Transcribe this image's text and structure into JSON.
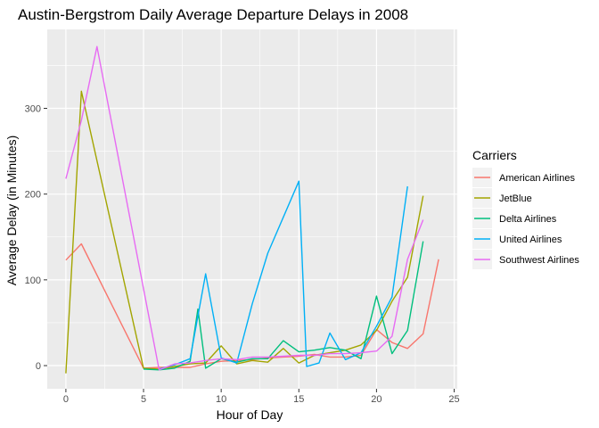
{
  "chart_data": {
    "type": "line",
    "title": "Austin-Bergstrom Daily Average Departure Delays in 2008",
    "xlabel": "Hour of Day",
    "ylabel": "Average Delay (in Minutes)",
    "xlim": [
      -1.2,
      25.2
    ],
    "ylim": [
      -27,
      392
    ],
    "x_ticks": [
      0,
      5,
      10,
      15,
      20,
      25
    ],
    "y_ticks": [
      0,
      100,
      200,
      300
    ],
    "grid": true,
    "legend": {
      "title": "Carriers",
      "position": "right"
    },
    "series": [
      {
        "name": "American Airlines",
        "color": "#F8766D",
        "points": [
          [
            0,
            123
          ],
          [
            1,
            142
          ],
          [
            5,
            -3
          ],
          [
            6,
            -2
          ],
          [
            7,
            -2
          ],
          [
            8,
            -2
          ],
          [
            9,
            2
          ],
          [
            10,
            5
          ],
          [
            11,
            6
          ],
          [
            12,
            7
          ],
          [
            13,
            9
          ],
          [
            14,
            10
          ],
          [
            15,
            11
          ],
          [
            16,
            13
          ],
          [
            17,
            10
          ],
          [
            18,
            10
          ],
          [
            19,
            12
          ],
          [
            20,
            42
          ],
          [
            21,
            27
          ],
          [
            22,
            20
          ],
          [
            23,
            37
          ],
          [
            24,
            124
          ]
        ]
      },
      {
        "name": "JetBlue",
        "color": "#A3A500",
        "points": [
          [
            0,
            -9
          ],
          [
            1,
            320
          ],
          [
            5,
            -3
          ],
          [
            6,
            -4
          ],
          [
            7,
            -1
          ],
          [
            8,
            2
          ],
          [
            9,
            3
          ],
          [
            10,
            23
          ],
          [
            11,
            2
          ],
          [
            12,
            6
          ],
          [
            13,
            4
          ],
          [
            14,
            20
          ],
          [
            15,
            3
          ],
          [
            16,
            12
          ],
          [
            17,
            15
          ],
          [
            18,
            18
          ],
          [
            19,
            24
          ],
          [
            20,
            41
          ],
          [
            21,
            75
          ],
          [
            22,
            103
          ],
          [
            23,
            198
          ]
        ]
      },
      {
        "name": "Delta Airlines",
        "color": "#00BF7D",
        "points": [
          [
            5,
            -4
          ],
          [
            6,
            -5
          ],
          [
            7,
            -3
          ],
          [
            8,
            5
          ],
          [
            8.5,
            66
          ],
          [
            9,
            -3
          ],
          [
            10,
            8
          ],
          [
            11,
            4
          ],
          [
            12,
            8
          ],
          [
            13,
            8
          ],
          [
            14,
            29
          ],
          [
            15,
            16
          ],
          [
            16,
            18
          ],
          [
            17,
            21
          ],
          [
            18,
            18
          ],
          [
            19,
            8
          ],
          [
            20,
            81
          ],
          [
            21,
            14
          ],
          [
            22,
            41
          ],
          [
            23,
            145
          ]
        ]
      },
      {
        "name": "United Airlines",
        "color": "#00B0F6",
        "points": [
          [
            6,
            -4
          ],
          [
            7,
            1
          ],
          [
            8,
            8
          ],
          [
            9,
            107
          ],
          [
            10,
            9
          ],
          [
            11,
            3
          ],
          [
            12,
            72
          ],
          [
            13,
            131
          ],
          [
            15,
            215
          ],
          [
            15.5,
            -1
          ],
          [
            16.3,
            3
          ],
          [
            17,
            38
          ],
          [
            18,
            7
          ],
          [
            19,
            15
          ],
          [
            20,
            46
          ],
          [
            21,
            80
          ],
          [
            22,
            209
          ]
        ]
      },
      {
        "name": "Southwest Airlines",
        "color": "#E76BF3",
        "points": [
          [
            0,
            218
          ],
          [
            1,
            286
          ],
          [
            2,
            372
          ],
          [
            6,
            -5
          ],
          [
            7,
            2
          ],
          [
            8,
            3
          ],
          [
            9,
            6
          ],
          [
            10,
            8
          ],
          [
            11,
            7
          ],
          [
            12,
            10
          ],
          [
            13,
            10
          ],
          [
            14,
            11
          ],
          [
            15,
            12
          ],
          [
            16,
            12
          ],
          [
            17,
            14
          ],
          [
            18,
            14
          ],
          [
            19,
            15
          ],
          [
            20,
            17
          ],
          [
            21,
            34
          ],
          [
            22,
            124
          ],
          [
            23,
            170
          ]
        ]
      }
    ]
  }
}
